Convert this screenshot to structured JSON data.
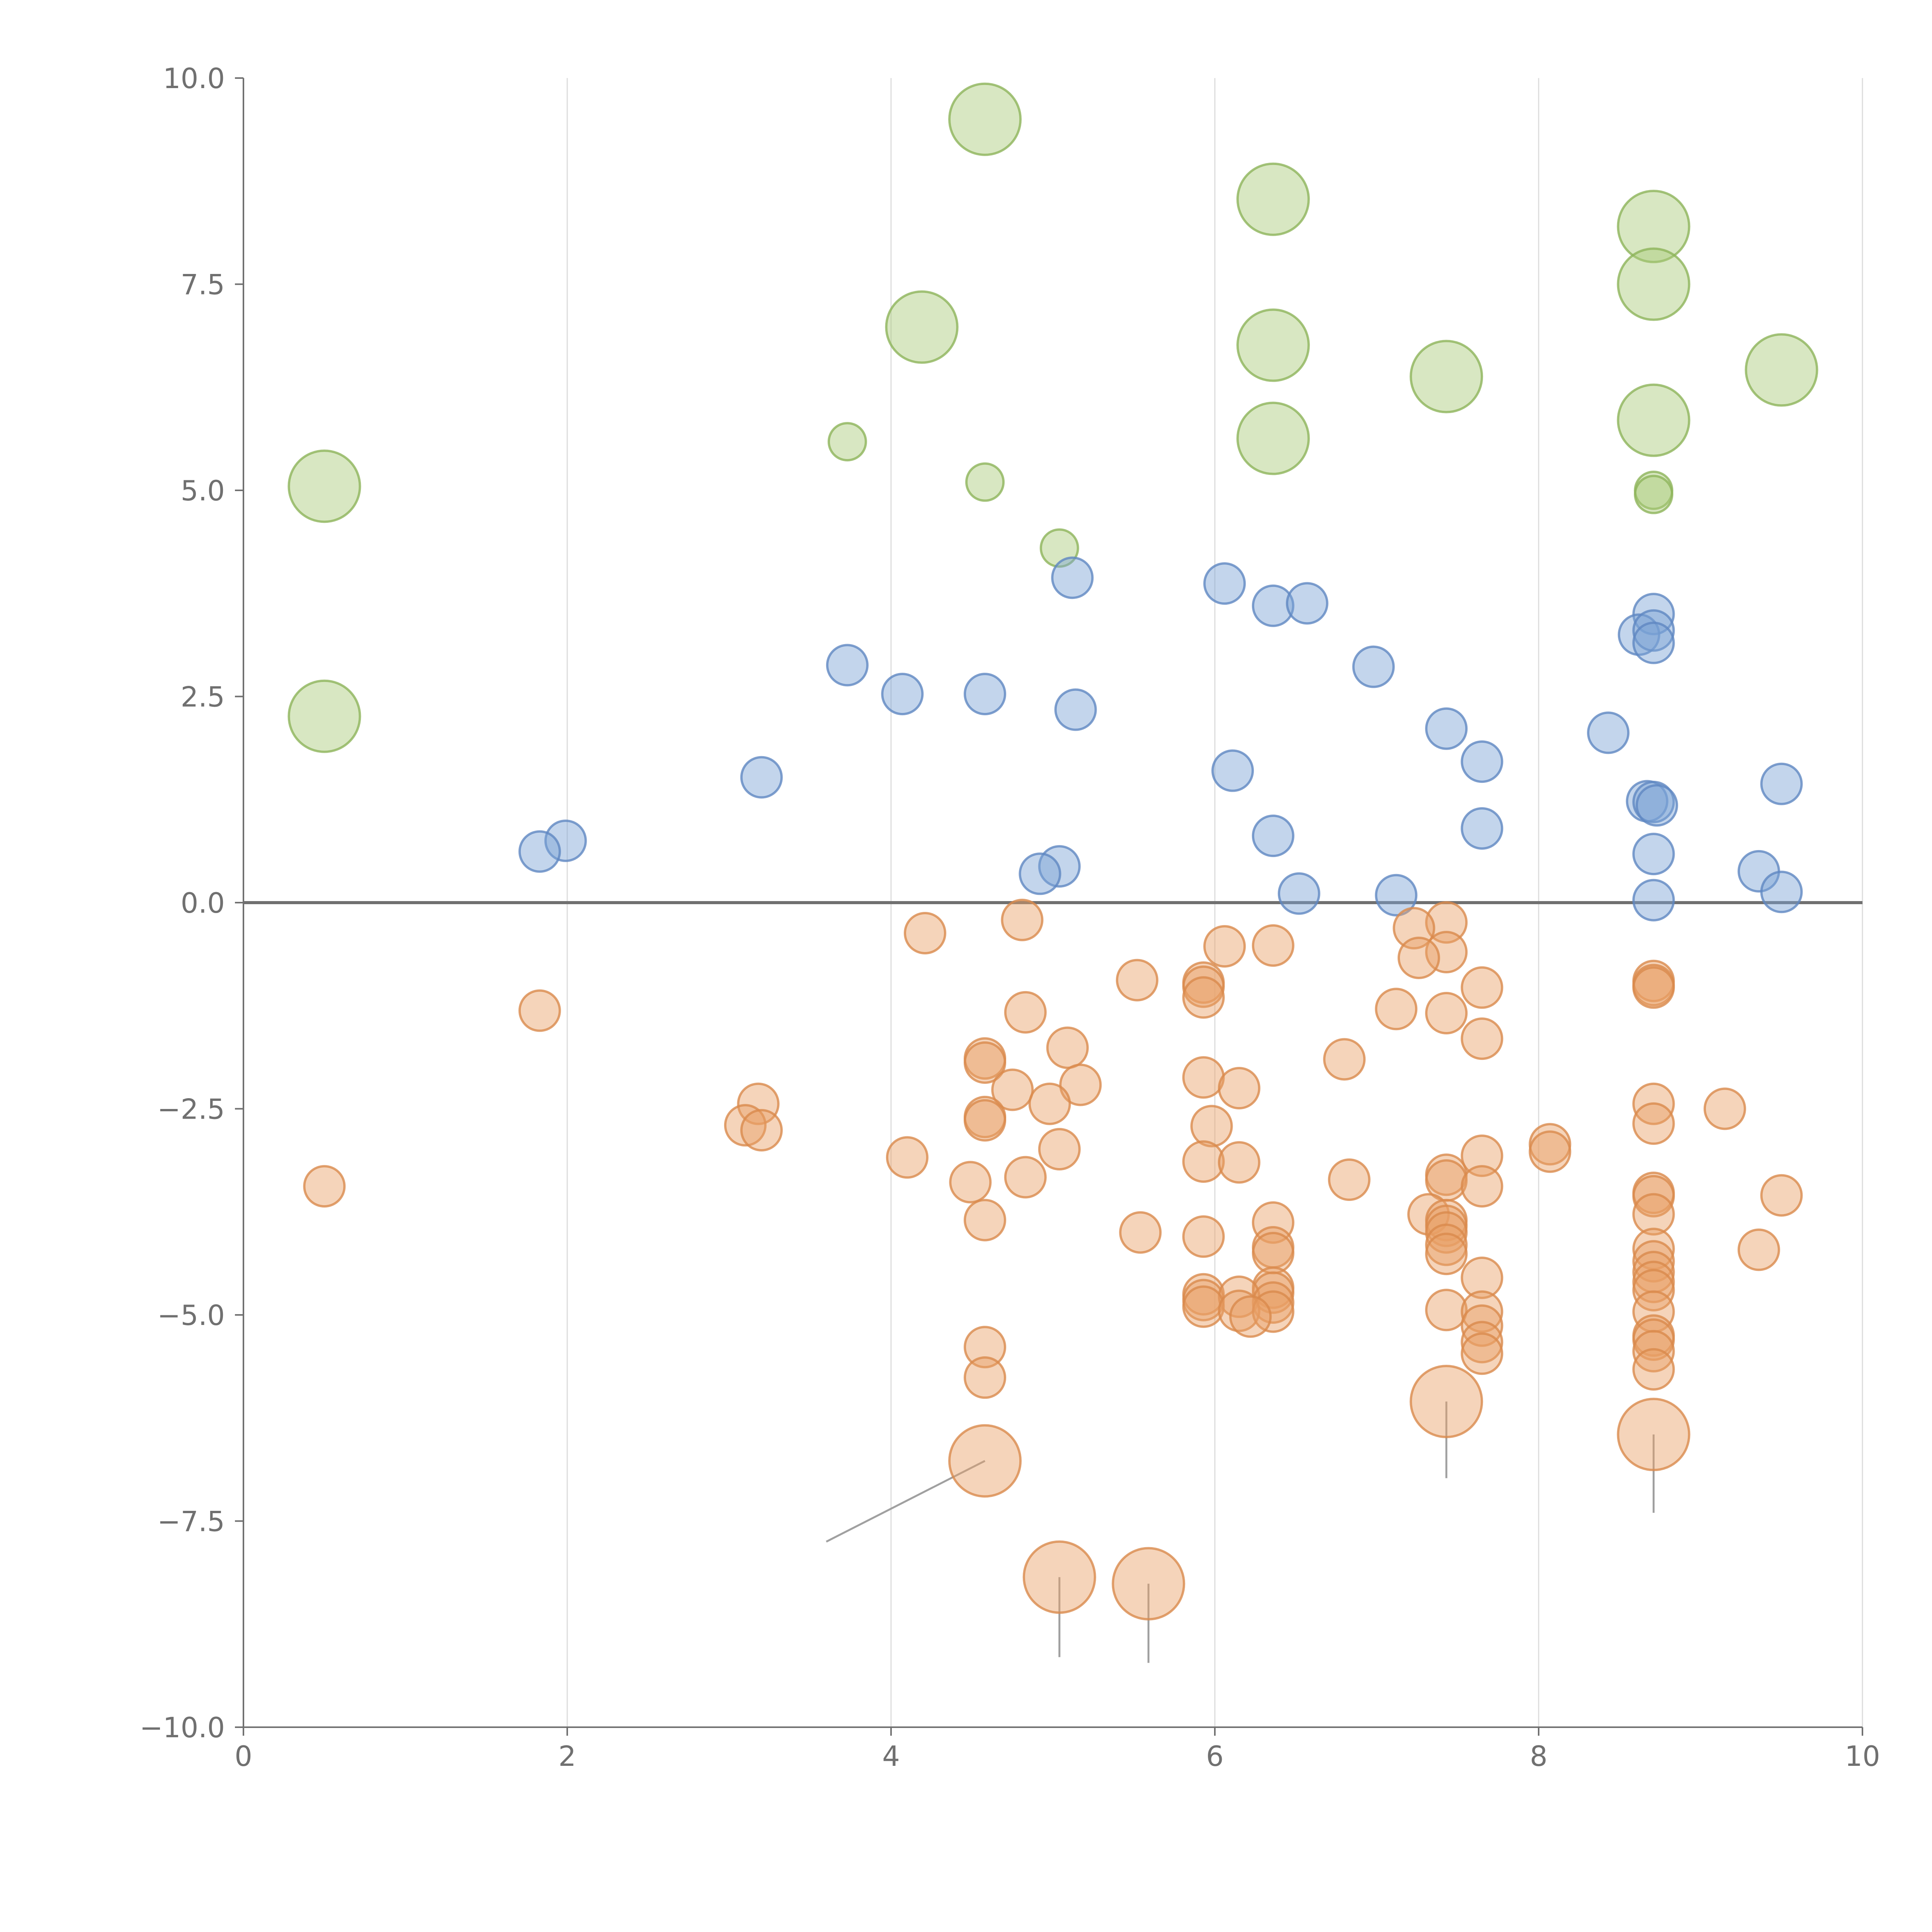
{
  "chart_data": {
    "type": "scatter",
    "title": "",
    "xlabel": "",
    "ylabel": "",
    "xlim": [
      0,
      10
    ],
    "ylim": [
      -10,
      10
    ],
    "x_ticks": [
      0,
      2,
      4,
      6,
      8,
      10
    ],
    "x_tick_labels": [
      "0",
      "2",
      "4",
      "6",
      "8",
      "10"
    ],
    "y_ticks": [
      10,
      7.5,
      5,
      2.5,
      0,
      -2.5,
      -5,
      -7.5,
      -10
    ],
    "y_tick_labels": [
      "10.0",
      "7.5",
      "5.0",
      "2.5",
      "0.0",
      "−2.5",
      "−5.0",
      "−7.5",
      "−10.0"
    ],
    "vertical_grid": true,
    "horizontal_grid": false,
    "reference_line_y": 0,
    "legend": "none",
    "marker_opacity": 0.45,
    "series": [
      {
        "color": "#a9c978",
        "stroke": "#8db45a",
        "points": [
          {
            "x": 4.58,
            "y": 9.5,
            "size": "large"
          },
          {
            "x": 6.36,
            "y": 8.53,
            "size": "large"
          },
          {
            "x": 8.71,
            "y": 8.2,
            "size": "large"
          },
          {
            "x": 8.71,
            "y": 7.5,
            "size": "large"
          },
          {
            "x": 4.19,
            "y": 6.98,
            "size": "large"
          },
          {
            "x": 6.36,
            "y": 6.76,
            "size": "large"
          },
          {
            "x": 7.43,
            "y": 6.38,
            "size": "large"
          },
          {
            "x": 9.5,
            "y": 6.46,
            "size": "large"
          },
          {
            "x": 8.71,
            "y": 5.85,
            "size": "large"
          },
          {
            "x": 6.36,
            "y": 5.63,
            "size": "large"
          },
          {
            "x": 0.5,
            "y": 5.05,
            "size": "large"
          },
          {
            "x": 0.5,
            "y": 2.26,
            "size": "large"
          },
          {
            "x": 3.73,
            "y": 5.59,
            "size": "small"
          },
          {
            "x": 4.58,
            "y": 5.1,
            "size": "small"
          },
          {
            "x": 5.04,
            "y": 4.3,
            "size": "small"
          },
          {
            "x": 8.71,
            "y": 5.0,
            "size": "small"
          },
          {
            "x": 8.71,
            "y": 4.95,
            "size": "small"
          }
        ]
      },
      {
        "color": "#7ba1d4",
        "stroke": "#5f87c2",
        "points": [
          {
            "x": 5.12,
            "y": 3.94
          },
          {
            "x": 6.06,
            "y": 3.87
          },
          {
            "x": 6.36,
            "y": 3.6
          },
          {
            "x": 6.57,
            "y": 3.63
          },
          {
            "x": 8.71,
            "y": 3.5
          },
          {
            "x": 8.62,
            "y": 3.25
          },
          {
            "x": 8.71,
            "y": 3.3
          },
          {
            "x": 8.71,
            "y": 3.15
          },
          {
            "x": 3.73,
            "y": 2.88
          },
          {
            "x": 6.98,
            "y": 2.86
          },
          {
            "x": 4.07,
            "y": 2.53
          },
          {
            "x": 4.58,
            "y": 2.53
          },
          {
            "x": 5.14,
            "y": 2.34
          },
          {
            "x": 7.43,
            "y": 2.11
          },
          {
            "x": 8.43,
            "y": 2.06
          },
          {
            "x": 7.65,
            "y": 1.71
          },
          {
            "x": 6.11,
            "y": 1.6
          },
          {
            "x": 3.2,
            "y": 1.52
          },
          {
            "x": 9.5,
            "y": 1.44
          },
          {
            "x": 8.67,
            "y": 1.23
          },
          {
            "x": 8.71,
            "y": 1.22
          },
          {
            "x": 8.73,
            "y": 1.18
          },
          {
            "x": 7.65,
            "y": 0.9
          },
          {
            "x": 6.36,
            "y": 0.81
          },
          {
            "x": 1.99,
            "y": 0.75
          },
          {
            "x": 1.83,
            "y": 0.62
          },
          {
            "x": 8.71,
            "y": 0.59
          },
          {
            "x": 5.04,
            "y": 0.44
          },
          {
            "x": 4.92,
            "y": 0.35
          },
          {
            "x": 9.36,
            "y": 0.38
          },
          {
            "x": 6.52,
            "y": 0.11
          },
          {
            "x": 7.12,
            "y": 0.09
          },
          {
            "x": 9.5,
            "y": 0.13
          },
          {
            "x": 8.71,
            "y": 0.03
          }
        ]
      },
      {
        "color": "#e8a065",
        "stroke": "#d98a4c",
        "points": [
          {
            "x": 4.81,
            "y": -0.21
          },
          {
            "x": 4.21,
            "y": -0.37
          },
          {
            "x": 7.43,
            "y": -0.24
          },
          {
            "x": 7.23,
            "y": -0.31
          },
          {
            "x": 6.06,
            "y": -0.53
          },
          {
            "x": 6.36,
            "y": -0.52
          },
          {
            "x": 7.43,
            "y": -0.6
          },
          {
            "x": 7.26,
            "y": -0.67
          },
          {
            "x": 5.52,
            "y": -0.94
          },
          {
            "x": 5.93,
            "y": -0.97
          },
          {
            "x": 5.93,
            "y": -1.02
          },
          {
            "x": 5.93,
            "y": -1.15
          },
          {
            "x": 8.71,
            "y": -0.95
          },
          {
            "x": 8.71,
            "y": -1.0
          },
          {
            "x": 8.71,
            "y": -1.03
          },
          {
            "x": 7.65,
            "y": -1.03
          },
          {
            "x": 1.83,
            "y": -1.31
          },
          {
            "x": 4.83,
            "y": -1.33
          },
          {
            "x": 7.12,
            "y": -1.29
          },
          {
            "x": 7.43,
            "y": -1.34
          },
          {
            "x": 7.65,
            "y": -1.65
          },
          {
            "x": 5.09,
            "y": -1.76
          },
          {
            "x": 4.58,
            "y": -1.89
          },
          {
            "x": 4.58,
            "y": -1.94
          },
          {
            "x": 6.8,
            "y": -1.9
          },
          {
            "x": 5.93,
            "y": -2.12
          },
          {
            "x": 5.17,
            "y": -2.21
          },
          {
            "x": 4.75,
            "y": -2.27
          },
          {
            "x": 6.15,
            "y": -2.25
          },
          {
            "x": 3.18,
            "y": -2.44
          },
          {
            "x": 4.98,
            "y": -2.44
          },
          {
            "x": 8.71,
            "y": -2.44
          },
          {
            "x": 9.15,
            "y": -2.5
          },
          {
            "x": 4.58,
            "y": -2.6
          },
          {
            "x": 4.58,
            "y": -2.64
          },
          {
            "x": 8.71,
            "y": -2.68
          },
          {
            "x": 3.1,
            "y": -2.7
          },
          {
            "x": 3.2,
            "y": -2.76
          },
          {
            "x": 5.98,
            "y": -2.71
          },
          {
            "x": 8.07,
            "y": -2.93
          },
          {
            "x": 8.07,
            "y": -3.02
          },
          {
            "x": 5.04,
            "y": -2.99
          },
          {
            "x": 4.1,
            "y": -3.09
          },
          {
            "x": 7.65,
            "y": -3.07
          },
          {
            "x": 5.93,
            "y": -3.14
          },
          {
            "x": 6.15,
            "y": -3.15
          },
          {
            "x": 7.43,
            "y": -3.3
          },
          {
            "x": 7.43,
            "y": -3.37
          },
          {
            "x": 4.83,
            "y": -3.33
          },
          {
            "x": 6.83,
            "y": -3.36
          },
          {
            "x": 4.49,
            "y": -3.39
          },
          {
            "x": 0.5,
            "y": -3.44
          },
          {
            "x": 7.65,
            "y": -3.44
          },
          {
            "x": 8.71,
            "y": -3.52
          },
          {
            "x": 8.71,
            "y": -3.56
          },
          {
            "x": 9.5,
            "y": -3.55
          },
          {
            "x": 7.32,
            "y": -3.78
          },
          {
            "x": 8.71,
            "y": -3.78
          },
          {
            "x": 7.43,
            "y": -3.85
          },
          {
            "x": 7.43,
            "y": -3.92
          },
          {
            "x": 6.36,
            "y": -3.88
          },
          {
            "x": 4.58,
            "y": -3.85
          },
          {
            "x": 7.43,
            "y": -4.0
          },
          {
            "x": 5.54,
            "y": -4.0
          },
          {
            "x": 5.93,
            "y": -4.05
          },
          {
            "x": 6.36,
            "y": -4.18
          },
          {
            "x": 6.36,
            "y": -4.25
          },
          {
            "x": 7.43,
            "y": -4.15
          },
          {
            "x": 7.43,
            "y": -4.26
          },
          {
            "x": 8.71,
            "y": -4.2
          },
          {
            "x": 9.36,
            "y": -4.21
          },
          {
            "x": 8.71,
            "y": -4.35
          },
          {
            "x": 8.71,
            "y": -4.48
          },
          {
            "x": 7.65,
            "y": -4.55
          },
          {
            "x": 8.71,
            "y": -4.6
          },
          {
            "x": 6.36,
            "y": -4.67
          },
          {
            "x": 6.36,
            "y": -4.73
          },
          {
            "x": 8.71,
            "y": -4.7
          },
          {
            "x": 5.93,
            "y": -4.75
          },
          {
            "x": 5.93,
            "y": -4.82
          },
          {
            "x": 6.15,
            "y": -4.78
          },
          {
            "x": 6.36,
            "y": -4.85
          },
          {
            "x": 5.93,
            "y": -4.9
          },
          {
            "x": 6.15,
            "y": -4.95
          },
          {
            "x": 7.43,
            "y": -4.94
          },
          {
            "x": 8.71,
            "y": -4.96
          },
          {
            "x": 7.65,
            "y": -4.96
          },
          {
            "x": 6.36,
            "y": -4.96
          },
          {
            "x": 6.22,
            "y": -5.02
          },
          {
            "x": 7.65,
            "y": -5.13
          },
          {
            "x": 8.71,
            "y": -5.25
          },
          {
            "x": 8.71,
            "y": -5.3
          },
          {
            "x": 7.65,
            "y": -5.33
          },
          {
            "x": 8.71,
            "y": -5.44
          },
          {
            "x": 4.58,
            "y": -5.39
          },
          {
            "x": 7.65,
            "y": -5.47
          },
          {
            "x": 8.71,
            "y": -5.66
          },
          {
            "x": 4.58,
            "y": -5.76
          },
          {
            "x": 7.43,
            "y": -6.05,
            "size": "large"
          },
          {
            "x": 8.71,
            "y": -6.45,
            "size": "large"
          },
          {
            "x": 4.58,
            "y": -6.77,
            "size": "large"
          },
          {
            "x": 5.04,
            "y": -8.18,
            "size": "large"
          },
          {
            "x": 5.59,
            "y": -8.26,
            "size": "large"
          }
        ]
      }
    ]
  }
}
